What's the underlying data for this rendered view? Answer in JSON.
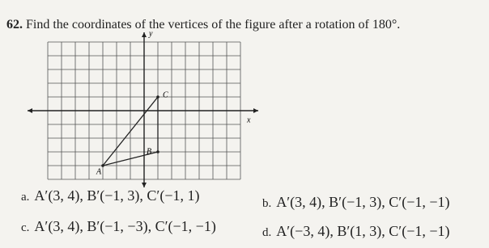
{
  "question": {
    "number": "62.",
    "text": "Find the coordinates of the vertices of the figure after a rotation of 180°."
  },
  "figure": {
    "y_axis_label": "y",
    "x_axis_label": "x",
    "points": [
      "A",
      "B",
      "C"
    ]
  },
  "choices": [
    {
      "label": "a.",
      "text": "A′(3, 4), B′(−1, 3), C′(−1, 1)"
    },
    {
      "label": "b.",
      "text": "A′(3, 4), B′(−1, 3), C′(−1, −1)"
    },
    {
      "label": "c.",
      "text": "A′(3, 4), B′(−1, −3), C′(−1, −1)"
    },
    {
      "label": "d.",
      "text": "A′(−3, 4), B′(1, 3), C′(−1, −1)"
    }
  ]
}
